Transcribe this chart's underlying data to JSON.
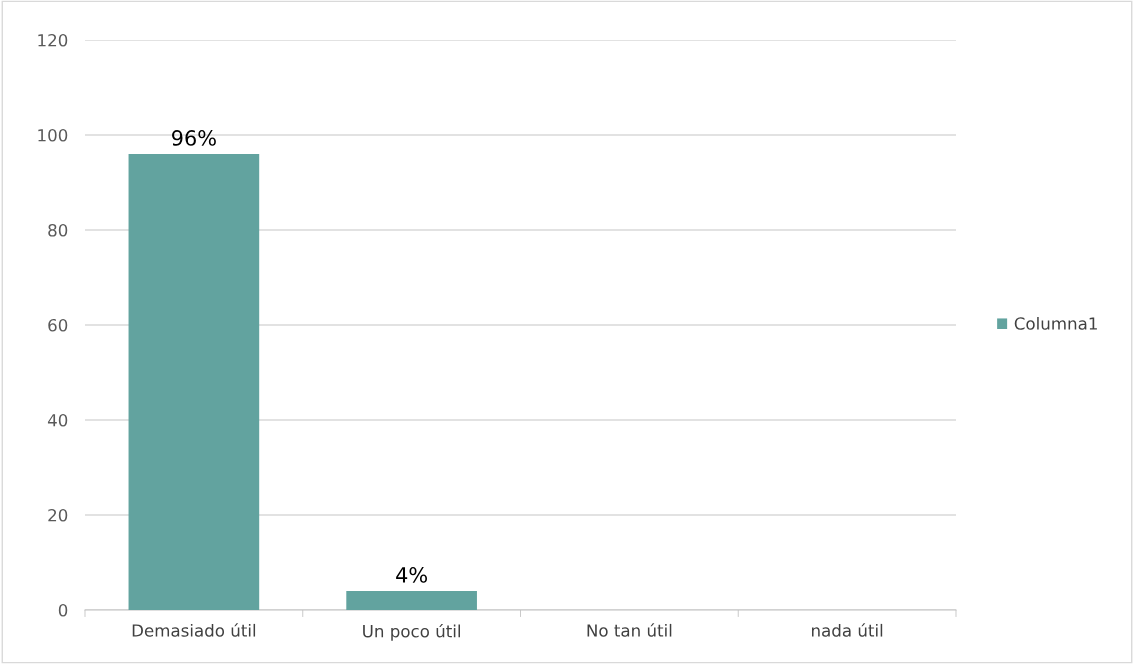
{
  "chart_data": {
    "type": "bar",
    "categories": [
      "Demasiado útil",
      "Un poco útil",
      "No tan útil",
      "nada útil"
    ],
    "series": [
      {
        "name": "Columna1",
        "color": "#62a39f",
        "values": [
          96,
          4,
          0,
          0
        ],
        "value_labels": [
          "96%",
          "4%",
          null,
          null
        ]
      }
    ],
    "ylim": [
      0,
      120
    ],
    "yticks": [
      0,
      20,
      40,
      60,
      80,
      100,
      120
    ],
    "grid": "y",
    "legend": "right"
  }
}
